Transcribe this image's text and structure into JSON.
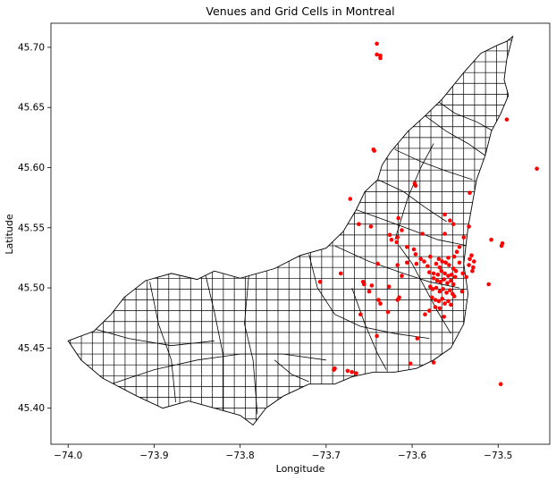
{
  "chart_data": {
    "type": "scatter",
    "title": "Venues and Grid Cells in Montreal",
    "xlabel": "Longitude",
    "ylabel": "Latitude",
    "xlim": [
      -74.02,
      -73.44
    ],
    "ylim": [
      45.37,
      45.72
    ],
    "xticks": [
      -74.0,
      -73.9,
      -73.8,
      -73.7,
      -73.6,
      -73.5
    ],
    "xtick_labels": [
      "−74.0",
      "−73.9",
      "−73.8",
      "−73.7",
      "−73.6",
      "−73.5"
    ],
    "yticks": [
      45.4,
      45.45,
      45.5,
      45.55,
      45.6,
      45.65,
      45.7
    ],
    "ytick_labels": [
      "45.40",
      "45.45",
      "45.50",
      "45.55",
      "45.60",
      "45.65",
      "45.70"
    ],
    "grid": false,
    "legend": "none",
    "colors": {
      "venue": "#ff0000",
      "outline": "#000000"
    },
    "island_outline": [
      [
        -74.0,
        45.456
      ],
      [
        -73.97,
        45.464
      ],
      [
        -73.95,
        45.478
      ],
      [
        -73.935,
        45.492
      ],
      [
        -73.91,
        45.506
      ],
      [
        -73.88,
        45.512
      ],
      [
        -73.85,
        45.507
      ],
      [
        -73.83,
        45.514
      ],
      [
        -73.8,
        45.508
      ],
      [
        -73.76,
        45.516
      ],
      [
        -73.73,
        45.527
      ],
      [
        -73.7,
        45.533
      ],
      [
        -73.68,
        45.547
      ],
      [
        -73.665,
        45.565
      ],
      [
        -73.655,
        45.58
      ],
      [
        -73.64,
        45.59
      ],
      [
        -73.635,
        45.602
      ],
      [
        -73.625,
        45.613
      ],
      [
        -73.605,
        45.63
      ],
      [
        -73.585,
        45.643
      ],
      [
        -73.565,
        45.657
      ],
      [
        -73.54,
        45.679
      ],
      [
        -73.52,
        45.695
      ],
      [
        -73.5,
        45.702
      ],
      [
        -73.49,
        45.705
      ],
      [
        -73.483,
        45.709
      ],
      [
        -73.49,
        45.69
      ],
      [
        -73.493,
        45.673
      ],
      [
        -73.488,
        45.66
      ],
      [
        -73.497,
        45.645
      ],
      [
        -73.508,
        45.63
      ],
      [
        -73.515,
        45.61
      ],
      [
        -73.525,
        45.59
      ],
      [
        -73.53,
        45.57
      ],
      [
        -73.535,
        45.55
      ],
      [
        -73.54,
        45.52
      ],
      [
        -73.535,
        45.495
      ],
      [
        -73.54,
        45.47
      ],
      [
        -73.555,
        45.45
      ],
      [
        -73.575,
        45.44
      ],
      [
        -73.595,
        45.433
      ],
      [
        -73.62,
        45.43
      ],
      [
        -73.645,
        45.43
      ],
      [
        -73.67,
        45.426
      ],
      [
        -73.69,
        45.42
      ],
      [
        -73.72,
        45.42
      ],
      [
        -73.75,
        45.41
      ],
      [
        -73.77,
        45.4
      ],
      [
        -73.785,
        45.386
      ],
      [
        -73.8,
        45.394
      ],
      [
        -73.83,
        45.4
      ],
      [
        -73.86,
        45.406
      ],
      [
        -73.89,
        45.4
      ],
      [
        -73.92,
        45.41
      ],
      [
        -73.96,
        45.425
      ],
      [
        -73.985,
        45.44
      ],
      [
        -74.0,
        45.456
      ]
    ],
    "borough_lines": [
      [
        [
          -73.98,
          45.468
        ],
        [
          -73.93,
          45.458
        ],
        [
          -73.88,
          45.452
        ],
        [
          -73.83,
          45.456
        ]
      ],
      [
        [
          -73.905,
          45.505
        ],
        [
          -73.895,
          45.47
        ],
        [
          -73.88,
          45.44
        ],
        [
          -73.875,
          45.405
        ]
      ],
      [
        [
          -73.84,
          45.51
        ],
        [
          -73.83,
          45.48
        ],
        [
          -73.82,
          45.445
        ],
        [
          -73.82,
          45.398
        ]
      ],
      [
        [
          -73.79,
          45.51
        ],
        [
          -73.795,
          45.47
        ],
        [
          -73.785,
          45.44
        ],
        [
          -73.78,
          45.395
        ]
      ],
      [
        [
          -73.95,
          45.42
        ],
        [
          -73.9,
          45.432
        ],
        [
          -73.85,
          45.44
        ],
        [
          -73.8,
          45.445
        ],
        [
          -73.75,
          45.445
        ],
        [
          -73.7,
          45.44
        ]
      ],
      [
        [
          -73.72,
          45.528
        ],
        [
          -73.71,
          45.5
        ],
        [
          -73.69,
          45.478
        ],
        [
          -73.66,
          45.468
        ],
        [
          -73.62,
          45.462
        ],
        [
          -73.58,
          45.458
        ]
      ],
      [
        [
          -73.69,
          45.535
        ],
        [
          -73.65,
          45.522
        ],
        [
          -73.61,
          45.512
        ],
        [
          -73.58,
          45.505
        ],
        [
          -73.545,
          45.5
        ]
      ],
      [
        [
          -73.665,
          45.565
        ],
        [
          -73.63,
          45.556
        ],
        [
          -73.6,
          45.548
        ],
        [
          -73.57,
          45.54
        ],
        [
          -73.535,
          45.535
        ]
      ],
      [
        [
          -73.64,
          45.59
        ],
        [
          -73.61,
          45.58
        ],
        [
          -73.585,
          45.567
        ],
        [
          -73.56,
          45.555
        ]
      ],
      [
        [
          -73.62,
          45.615
        ],
        [
          -73.59,
          45.605
        ],
        [
          -73.56,
          45.597
        ],
        [
          -73.53,
          45.59
        ]
      ],
      [
        [
          -73.585,
          45.643
        ],
        [
          -73.56,
          45.63
        ],
        [
          -73.535,
          45.62
        ],
        [
          -73.515,
          45.61
        ]
      ],
      [
        [
          -73.57,
          45.655
        ],
        [
          -73.55,
          45.645
        ],
        [
          -73.525,
          45.638
        ],
        [
          -73.505,
          45.63
        ]
      ],
      [
        [
          -73.62,
          45.54
        ],
        [
          -73.605,
          45.575
        ],
        [
          -73.59,
          45.6
        ],
        [
          -73.575,
          45.62
        ]
      ],
      [
        [
          -73.67,
          45.5
        ],
        [
          -73.655,
          45.47
        ],
        [
          -73.64,
          45.445
        ],
        [
          -73.63,
          45.432
        ]
      ],
      [
        [
          -73.76,
          45.44
        ],
        [
          -73.74,
          45.428
        ],
        [
          -73.72,
          45.422
        ]
      ],
      [
        [
          -73.555,
          45.462
        ],
        [
          -73.57,
          45.48
        ],
        [
          -73.585,
          45.5
        ],
        [
          -73.6,
          45.52
        ],
        [
          -73.615,
          45.535
        ]
      ]
    ],
    "venues": {
      "x": [
        -73.641,
        -73.641,
        -73.637,
        -73.637,
        -73.49,
        -73.455,
        -73.645,
        -73.644,
        -73.597,
        -73.596,
        -73.533,
        -73.672,
        -73.662,
        -73.648,
        -73.616,
        -73.612,
        -73.624,
        -73.617,
        -73.618,
        -73.606,
        -73.598,
        -73.596,
        -73.59,
        -73.586,
        -73.579,
        -73.569,
        -73.562,
        -73.556,
        -73.552,
        -73.534,
        -73.531,
        -73.528,
        -73.508,
        -73.495,
        -73.496,
        -73.511,
        -73.617,
        -73.606,
        -73.595,
        -73.582,
        -73.572,
        -73.568,
        -73.565,
        -73.561,
        -73.557,
        -73.552,
        -73.549,
        -73.545,
        -73.58,
        -73.575,
        -73.57,
        -73.566,
        -73.562,
        -73.558,
        -73.554,
        -73.55,
        -73.575,
        -73.571,
        -73.567,
        -73.563,
        -73.559,
        -73.555,
        -73.552,
        -73.579,
        -73.576,
        -73.572,
        -73.568,
        -73.564,
        -73.56,
        -73.556,
        -73.553,
        -73.577,
        -73.573,
        -73.569,
        -73.565,
        -73.562,
        -73.558,
        -73.555,
        -73.551,
        -73.585,
        -73.58,
        -73.573,
        -73.568,
        -73.563,
        -73.548,
        -73.545,
        -73.534,
        -73.53,
        -73.537,
        -73.541,
        -73.529,
        -73.533,
        -73.542,
        -73.612,
        -73.617,
        -73.615,
        -73.628,
        -73.627,
        -73.639,
        -73.637,
        -73.647,
        -73.65,
        -73.69,
        -73.691,
        -73.675,
        -73.67,
        -73.665,
        -73.602,
        -73.594,
        -73.575,
        -73.497,
        -73.707,
        -73.683,
        -73.641,
        -73.626,
        -73.588,
        -73.562,
        -73.54,
        -73.551,
        -73.558,
        -73.64,
        -73.657,
        -73.656,
        -73.66
      ],
      "y": [
        45.703,
        45.694,
        45.693,
        45.691,
        45.64,
        45.599,
        45.615,
        45.614,
        45.587,
        45.585,
        45.579,
        45.574,
        45.553,
        45.551,
        45.558,
        45.548,
        45.54,
        45.542,
        45.538,
        45.534,
        45.532,
        45.528,
        45.524,
        45.522,
        45.526,
        45.524,
        45.561,
        45.556,
        45.553,
        45.551,
        45.527,
        45.522,
        45.54,
        45.537,
        45.535,
        45.503,
        45.519,
        45.521,
        45.52,
        45.518,
        45.52,
        45.517,
        45.522,
        45.521,
        45.519,
        45.516,
        45.514,
        45.521,
        45.513,
        45.512,
        45.511,
        45.514,
        45.512,
        45.51,
        45.511,
        45.509,
        45.508,
        45.506,
        45.505,
        45.507,
        45.504,
        45.506,
        45.503,
        45.501,
        45.499,
        45.5,
        45.497,
        45.499,
        45.496,
        45.498,
        45.495,
        45.492,
        45.49,
        45.489,
        45.491,
        45.487,
        45.489,
        45.486,
        45.493,
        45.478,
        45.481,
        45.484,
        45.483,
        45.476,
        45.53,
        45.534,
        45.519,
        45.514,
        45.509,
        45.512,
        45.517,
        45.524,
        45.497,
        45.51,
        45.49,
        45.492,
        45.48,
        45.501,
        45.49,
        45.487,
        45.502,
        45.497,
        45.433,
        45.432,
        45.431,
        45.43,
        45.429,
        45.437,
        45.458,
        45.438,
        45.42,
        45.505,
        45.512,
        45.46,
        45.544,
        45.545,
        45.545,
        45.542,
        45.526,
        45.525,
        45.52,
        45.505,
        45.503,
        45.478
      ]
    }
  }
}
